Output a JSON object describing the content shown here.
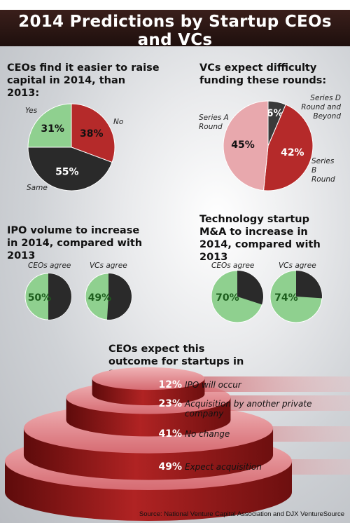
{
  "title": "2014 Predictions by Startup CEOs and VCs",
  "source": "Source: National Venture Capital Association and DJX VentureSource",
  "colors": {
    "green": "#8fd08f",
    "red": "#b52a2a",
    "dark": "#2a2a2a",
    "pink": "#e8a8ad"
  },
  "sections": {
    "ceo_capital": "CEOs find it easier to raise capital in 2014, than 2013:",
    "vc_rounds": "VCs expect difficulty funding these rounds:",
    "ipo": "IPO volume to increase in 2014, compared with 2013",
    "mna": "Technology startup M&A to increase in 2014, compared with 2013",
    "outcome": "CEOs expect this outcome for startups in 2014:"
  },
  "chart_data": [
    {
      "type": "pie",
      "title": "CEOs find it easier to raise capital in 2014, than 2013:",
      "slices": [
        {
          "label": "No",
          "value": 38,
          "display": "38%",
          "color": "#b52a2a"
        },
        {
          "label": "Same",
          "value": 55,
          "display": "55%",
          "color": "#2a2a2a"
        },
        {
          "label": "Yes",
          "value": 31,
          "display": "31%",
          "color": "#8fd08f"
        }
      ]
    },
    {
      "type": "pie",
      "title": "VCs expect difficulty funding these rounds:",
      "slices": [
        {
          "label": "Series D Round and Beyond",
          "value": 6,
          "display": "6%",
          "color": "#3a3a3a"
        },
        {
          "label": "Series B Round",
          "value": 42,
          "display": "42%",
          "color": "#b52a2a"
        },
        {
          "label": "Series A Round",
          "value": 45,
          "display": "45%",
          "color": "#e8a8ad"
        }
      ]
    },
    {
      "type": "pie",
      "title": "IPO volume to increase in 2014, compared with 2013",
      "pies": [
        {
          "label": "CEOs agree",
          "value": 50,
          "display": "50%"
        },
        {
          "label": "VCs agree",
          "value": 49,
          "display": "49%"
        }
      ]
    },
    {
      "type": "pie",
      "title": "Technology startup M&A to increase in 2014, compared with 2013",
      "pies": [
        {
          "label": "CEOs agree",
          "value": 70,
          "display": "70%"
        },
        {
          "label": "VCs agree",
          "value": 74,
          "display": "74%"
        }
      ]
    },
    {
      "type": "bar",
      "title": "CEOs expect this outcome for startups in 2014:",
      "categories": [
        "IPO will occur",
        "Acquisition by another private company",
        "No change",
        "Expect acquisition"
      ],
      "values": [
        12,
        23,
        41,
        49
      ],
      "display": [
        "12%",
        "23%",
        "41%",
        "49%"
      ]
    }
  ]
}
